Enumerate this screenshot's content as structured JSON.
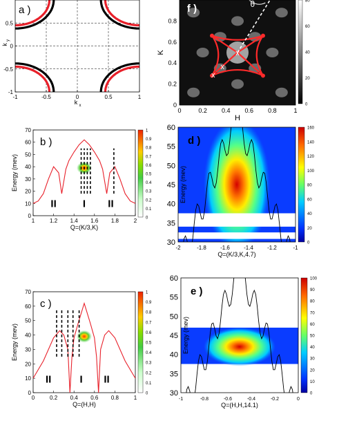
{
  "chart_data": [
    {
      "id": "a",
      "type": "line",
      "panel_label": "a )",
      "xlabel": "k",
      "xlabel_sub": "x",
      "ylabel": "k",
      "ylabel_sub": "y",
      "xlim": [
        -1,
        1
      ],
      "ylim": [
        -1,
        1
      ],
      "xticks": [
        -1,
        -0.5,
        0,
        0.5,
        1
      ],
      "xtick_labels": [
        "-1",
        "-0.5",
        "0",
        "0.5",
        "1"
      ],
      "yticks": [
        -1,
        -0.5,
        0,
        0.5
      ],
      "ytick_labels": [
        "-1",
        "-0.5",
        "0",
        "0.5"
      ],
      "series": [
        {
          "color": "#000000",
          "arc_radius": 0.62
        },
        {
          "color": "#e8202a",
          "arc_radius": 0.55
        }
      ],
      "dashed_guides": [
        -0.5,
        0,
        0.5
      ]
    },
    {
      "id": "f",
      "type": "heatmap",
      "panel_label": "f )",
      "xlabel": "H",
      "ylabel": "K",
      "xlim": [
        0,
        1
      ],
      "ylim": [
        0,
        1
      ],
      "xticks": [
        0,
        0.2,
        0.4,
        0.6,
        0.8,
        1
      ],
      "xtick_labels": [
        "0",
        "0.2",
        "0.4",
        "0.6",
        "0.8",
        "1"
      ],
      "yticks": [
        0,
        0.2,
        0.4,
        0.6,
        0.8
      ],
      "ytick_labels": [
        "0",
        "0.2",
        "0.4",
        "0.6",
        "0.8"
      ],
      "colorbar_ticks": [
        "80",
        "60",
        "40",
        "20",
        "0"
      ],
      "annotation": "θ",
      "point_labels": [
        "x",
        "x",
        "x"
      ],
      "red_star_vertices": [
        [
          0.28,
          0.66
        ],
        [
          0.72,
          0.66
        ],
        [
          0.72,
          0.28
        ],
        [
          0.28,
          0.28
        ]
      ],
      "white_points": [
        [
          0.5,
          0.5
        ],
        [
          0.37,
          0.37
        ],
        [
          0.29,
          0.29
        ]
      ]
    },
    {
      "id": "b",
      "type": "line",
      "panel_label": "b )",
      "xlabel": "Q=(K/3,K)",
      "ylabel": "Energy (mev)",
      "xlim": [
        1,
        2
      ],
      "ylim": [
        0,
        70
      ],
      "xticks": [
        1,
        1.2,
        1.4,
        1.6,
        1.8,
        2
      ],
      "xtick_labels": [
        "1",
        "1.2",
        "1.4",
        "1.6",
        "1.8",
        "2"
      ],
      "yticks": [
        0,
        10,
        20,
        30,
        40,
        50,
        60,
        70
      ],
      "ytick_labels": [
        "0",
        "10",
        "20",
        "30",
        "40",
        "50",
        "60",
        "70"
      ],
      "region_labels": [
        "II",
        "I",
        "II"
      ],
      "region_x": [
        1.2,
        1.5,
        1.76
      ],
      "region_y": 7,
      "colorbar_ticks": [
        "1",
        "0.9",
        "0.8",
        "0.7",
        "0.6",
        "0.5",
        "0.4",
        "0.3",
        "0.2",
        "0.1",
        "0"
      ],
      "dispersion": {
        "x": [
          1,
          1.05,
          1.1,
          1.15,
          1.2,
          1.25,
          1.28,
          1.32,
          1.35,
          1.4,
          1.45,
          1.5,
          1.55,
          1.6,
          1.65,
          1.68,
          1.72,
          1.75,
          1.8,
          1.85,
          1.9,
          1.95,
          2
        ],
        "y": [
          10,
          12,
          18,
          30,
          40,
          35,
          18,
          38,
          45,
          52,
          58,
          62,
          58,
          52,
          45,
          38,
          18,
          35,
          40,
          30,
          18,
          12,
          10
        ],
        "color": "#e8202a"
      },
      "dashed_x": [
        1.47,
        1.5,
        1.53,
        1.56,
        1.79
      ],
      "dashed_y": [
        18,
        55
      ],
      "spot": {
        "x": 1.5,
        "y": 39
      }
    },
    {
      "id": "d",
      "type": "heatmap",
      "panel_label": "d )",
      "xlabel": "Q=(K/3,K,4.7)",
      "ylabel": "Energy (mev)",
      "xlim": [
        -2,
        -1
      ],
      "ylim": [
        30,
        60
      ],
      "xticks": [
        -2,
        -1.8,
        -1.6,
        -1.4,
        -1.2,
        -1
      ],
      "xtick_labels": [
        "-2",
        "-1.8",
        "-1.6",
        "-1.4",
        "-1.2",
        "-1"
      ],
      "yticks": [
        30,
        35,
        40,
        45,
        50,
        55,
        60
      ],
      "ytick_labels": [
        "30",
        "35",
        "40",
        "45",
        "50",
        "55",
        "60"
      ],
      "colorbar_ticks": [
        "160",
        "140",
        "120",
        "100",
        "80",
        "60",
        "40",
        "20",
        "0"
      ],
      "peak_x": -1.5,
      "peak_y": 43,
      "white_band": [
        34,
        37.5
      ],
      "white_band2": [
        30.8,
        32.5
      ]
    },
    {
      "id": "c",
      "type": "line",
      "panel_label": "c )",
      "xlabel": "Q=(H,H)",
      "ylabel": "Energy (mev)",
      "xlim": [
        0,
        1
      ],
      "ylim": [
        0,
        70
      ],
      "xticks": [
        0,
        0.2,
        0.4,
        0.6,
        0.8,
        1
      ],
      "xtick_labels": [
        "0",
        "0.2",
        "0.4",
        "0.6",
        "0.8",
        "1"
      ],
      "yticks": [
        0,
        10,
        20,
        30,
        40,
        50,
        60,
        70
      ],
      "ytick_labels": [
        "0",
        "10",
        "20",
        "30",
        "40",
        "50",
        "60",
        "70"
      ],
      "region_labels": [
        "II",
        "I",
        "II"
      ],
      "region_x": [
        0.15,
        0.47,
        0.72
      ],
      "region_y": 7,
      "colorbar_ticks": [
        "1",
        "0.9",
        "0.8",
        "0.7",
        "0.6",
        "0.5",
        "0.4",
        "0.3",
        "0.2",
        "0.1",
        "0"
      ],
      "dispersion": {
        "x": [
          0,
          0.1,
          0.2,
          0.26,
          0.3,
          0.34,
          0.36,
          0.38,
          0.4,
          0.44,
          0.5,
          0.56,
          0.6,
          0.62,
          0.64,
          0.66,
          0.7,
          0.74,
          0.8,
          0.9,
          1
        ],
        "y": [
          10,
          22,
          38,
          43,
          40,
          30,
          0,
          25,
          38,
          48,
          62,
          48,
          38,
          25,
          0,
          30,
          40,
          43,
          38,
          22,
          10
        ],
        "color": "#e8202a"
      },
      "dashed_x": [
        0.23,
        0.28,
        0.34,
        0.39,
        0.45
      ],
      "dashed_y": [
        25,
        58
      ],
      "spot": {
        "x": 0.5,
        "y": 39
      }
    },
    {
      "id": "e",
      "type": "heatmap",
      "panel_label": "e )",
      "xlabel": "Q=(H,H,14.1)",
      "ylabel": "Energy (mev)",
      "xlim": [
        -1,
        0
      ],
      "ylim": [
        30,
        60
      ],
      "xticks": [
        -1,
        -0.8,
        -0.6,
        -0.4,
        -0.2,
        0
      ],
      "xtick_labels": [
        "-1",
        "-0.8",
        "-0.6",
        "-0.4",
        "-0.2",
        "0"
      ],
      "yticks": [
        30,
        35,
        40,
        45,
        50,
        55,
        60
      ],
      "ytick_labels": [
        "30",
        "35",
        "40",
        "45",
        "50",
        "55",
        "60"
      ],
      "colorbar_ticks": [
        "100",
        "90",
        "80",
        "70",
        "60",
        "50",
        "40",
        "30",
        "20",
        "10",
        "0"
      ],
      "peak_x": -0.5,
      "peak_y": 42,
      "band": [
        37.5,
        47
      ]
    }
  ]
}
